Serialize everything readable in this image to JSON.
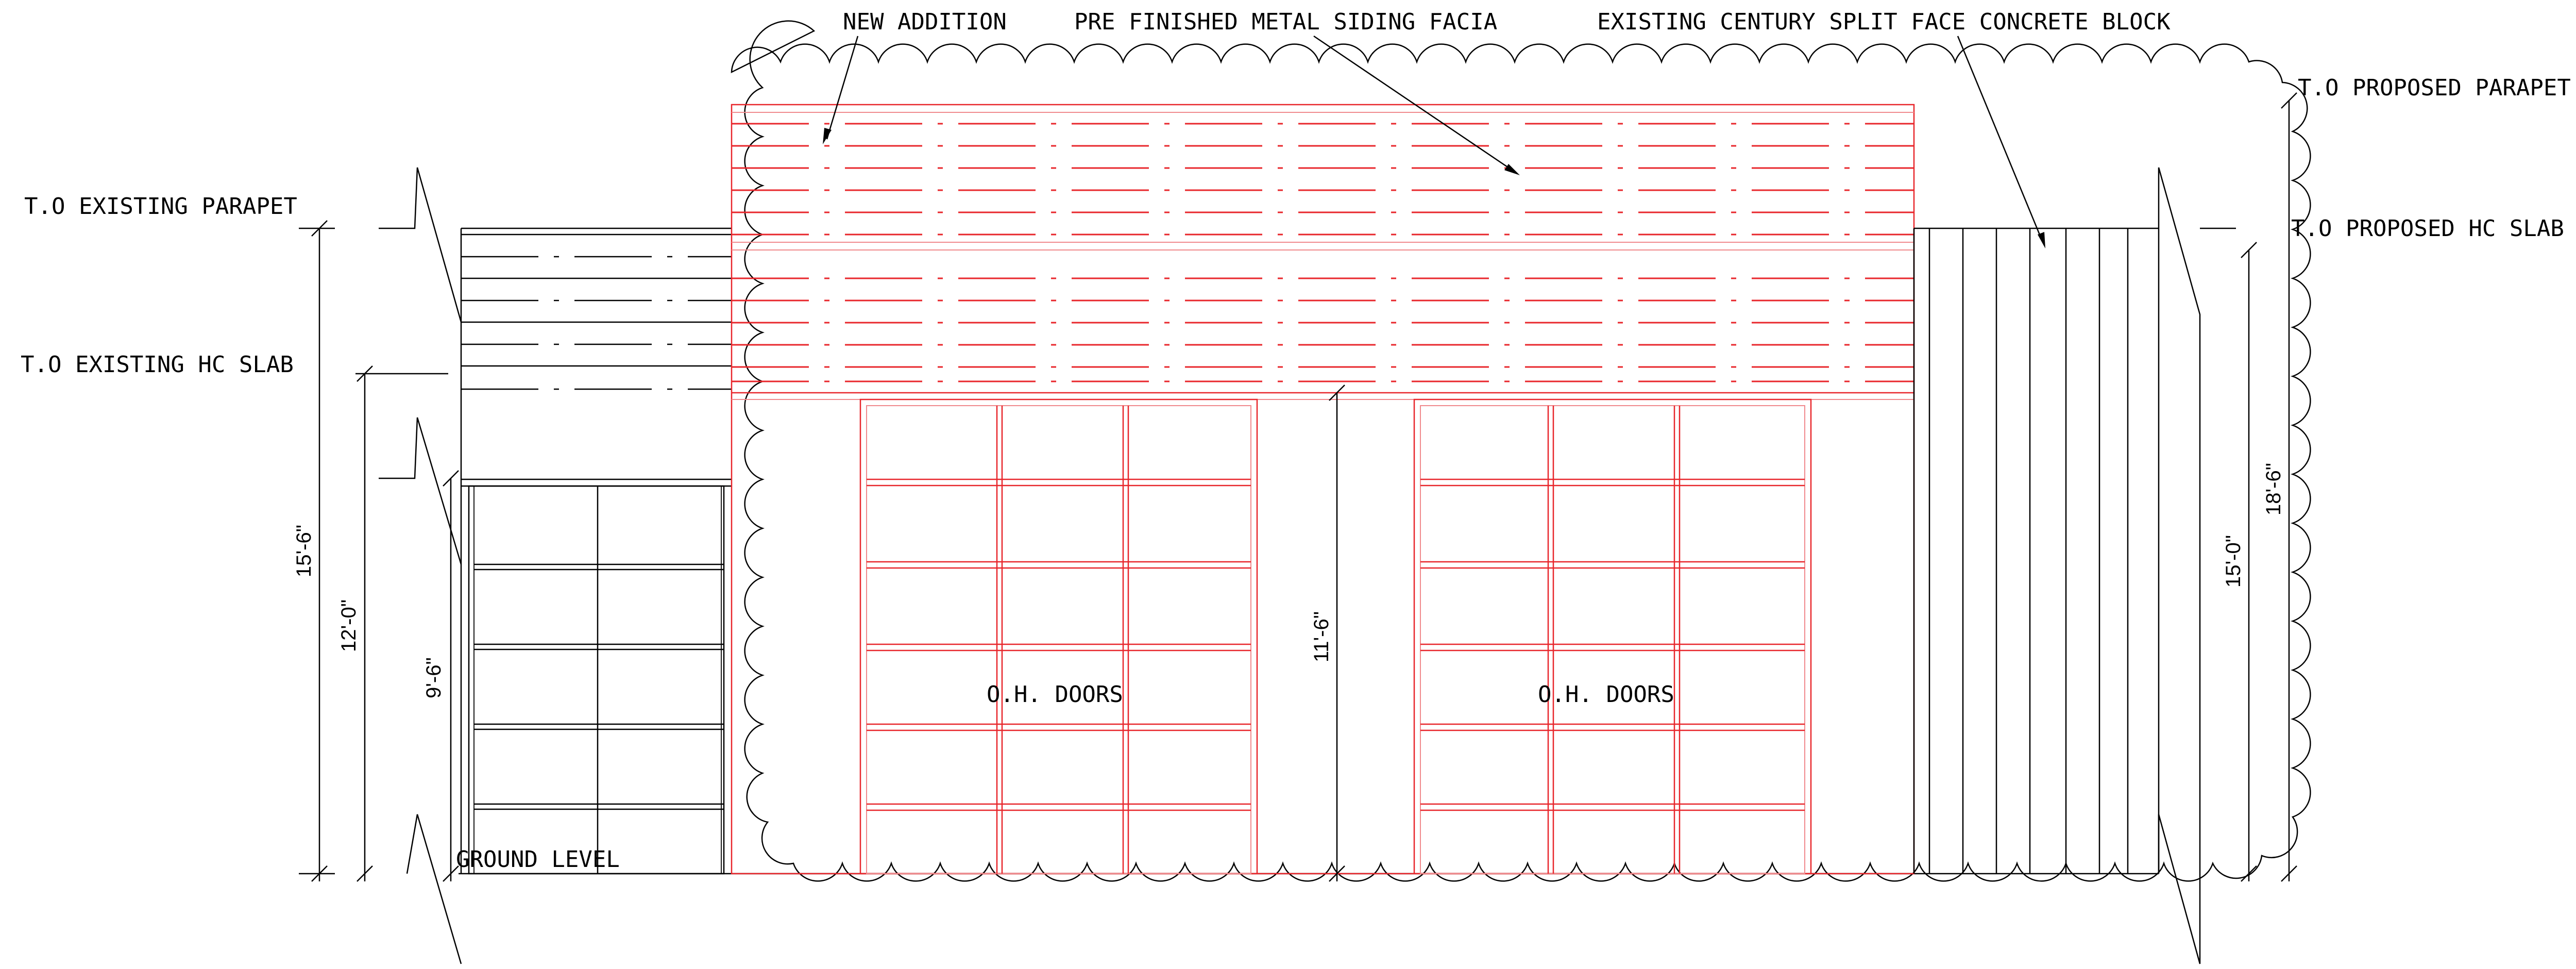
{
  "labels": {
    "new_addition": "NEW ADDITION",
    "siding": "PRE FINISHED METAL SIDING FACIA",
    "existing_block": "EXISTING CENTURY SPLIT FACE CONCRETE BLOCK",
    "to_existing_parapet": "T.O EXISTING PARAPET",
    "to_existing_hc_slab": "T.O EXISTING HC SLAB",
    "to_proposed_parapet": "T.O PROPOSED PARAPET",
    "to_proposed_hc_slab": "T.O PROPOSED HC SLAB",
    "ground_level": "GROUND LEVEL",
    "oh_doors_1": "O.H. DOORS",
    "oh_doors_2": "O.H. DOORS"
  },
  "dimensions": {
    "d_15_6": "15'-6\"",
    "d_12_0": "12'-0\"",
    "d_9_6": "9'-6\"",
    "d_11_6": "11'-6\"",
    "d_15_0": "15'-0\"",
    "d_18_6": "18'-6\""
  },
  "colors": {
    "new_work": "#e8262b",
    "existing": "#000000"
  }
}
